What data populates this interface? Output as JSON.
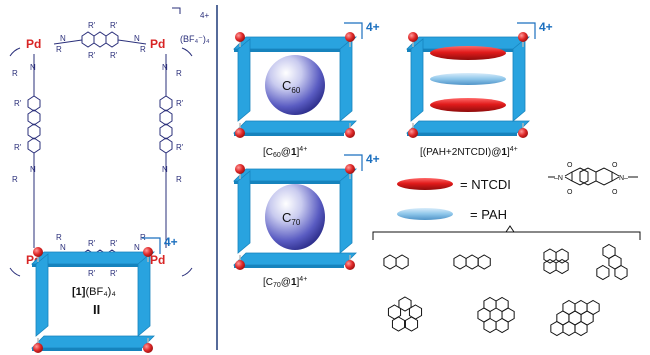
{
  "labels": {
    "charge": "4+",
    "counterion": "(BF₄⁻)₄",
    "pd": "Pd",
    "r": "R",
    "r_prime": "R'",
    "n": "N",
    "n_prime": "N'",
    "nh": "N",
    "compound_number": "1",
    "compound_salt": "(BF₄)₄",
    "roman_numeral": "II",
    "c60_sphere": "C",
    "c60_sub": "60",
    "c70_sphere": "C",
    "c70_sub": "70",
    "c60_complex_a": "[C",
    "c60_complex_sub": "60",
    "c60_complex_b": "@",
    "c60_complex_c": "1",
    "c60_complex_d": "]",
    "c70_complex_a": "[C",
    "c70_complex_sub": "70",
    "c70_complex_b": "@",
    "c70_complex_c": "1",
    "c70_complex_d": "]",
    "pah_complex_a": "[(PAH+2NTCDI)@",
    "pah_complex_c": "1",
    "pah_complex_d": "]",
    "legend_ntcdi": "= NTCDI",
    "legend_pah": "= PAH",
    "methyl_left": "–N",
    "methyl_right": "N–",
    "o": "O"
  },
  "colors": {
    "panel_blue": "#29a3df",
    "panel_dark": "#1683bd",
    "pd_red": "#d82424",
    "node_red": "#e02a2a",
    "ntcdi_red": "#d92025",
    "pah_blue": "#8ec6ea",
    "sphere": "#4a4bb5",
    "charge_blue": "#1b6fbf",
    "structure_navy": "#2a2f7a",
    "divider": "#1f3a78"
  }
}
